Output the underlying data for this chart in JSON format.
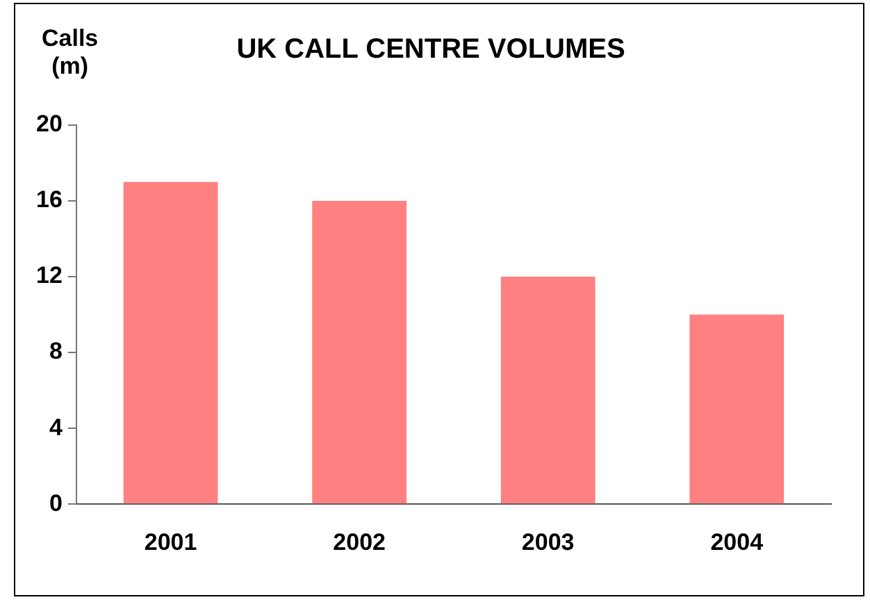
{
  "chart_data": {
    "type": "bar",
    "title": "UK CALL CENTRE VOLUMES",
    "ylabel": "Calls\n(m)",
    "categories": [
      "2001",
      "2002",
      "2003",
      "2004"
    ],
    "series": [
      {
        "color": "#ff8080",
        "values": [
          17,
          16,
          12,
          10
        ]
      }
    ],
    "ylim": [
      0,
      20
    ],
    "yticks": [
      0,
      4,
      8,
      12,
      16,
      20
    ],
    "grid": false,
    "legend": false
  }
}
